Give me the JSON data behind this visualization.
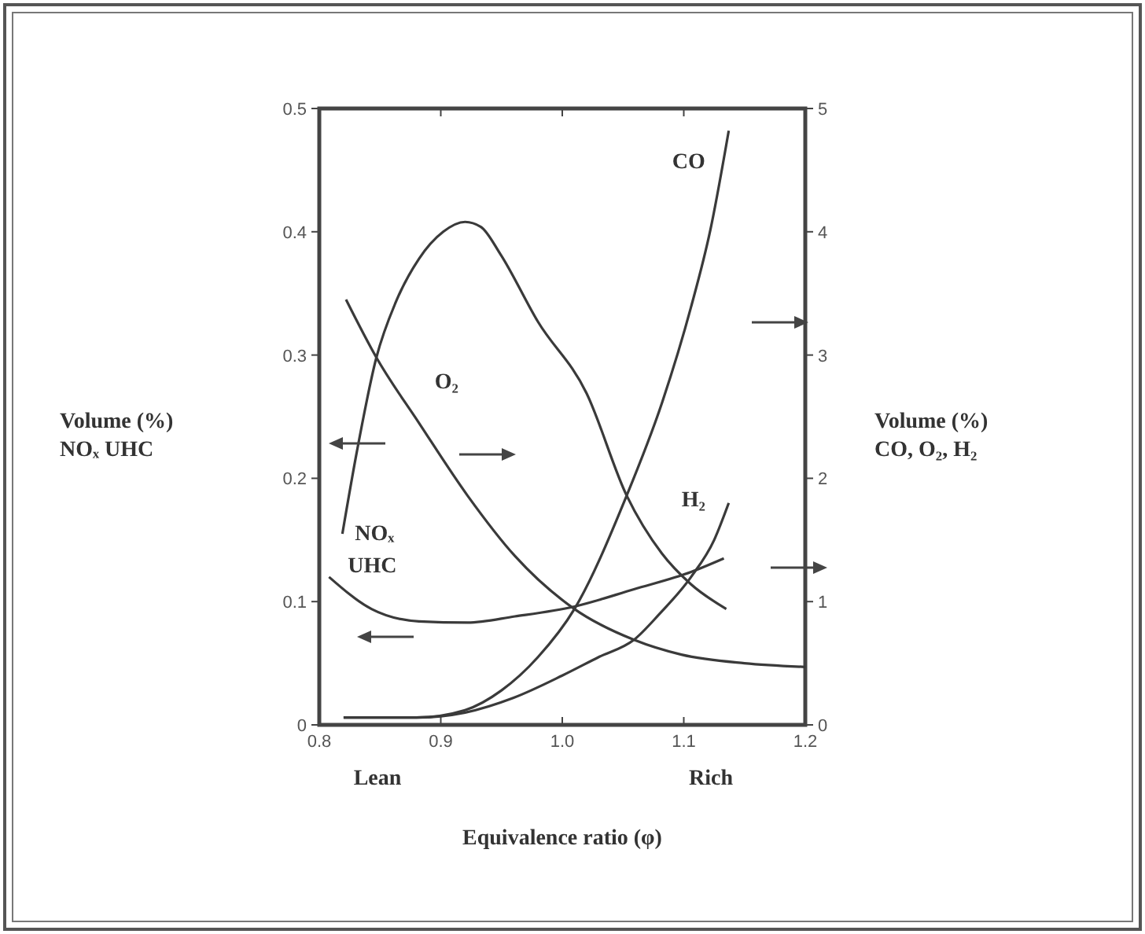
{
  "chart_data": {
    "type": "line",
    "xlabel": "Equivalence ratio (φ)",
    "ylabel": "Volume (%)\nNOₓ UHC",
    "y2label": "Volume (%)\nCO, O₂, H₂",
    "xlim": [
      0.8,
      1.2
    ],
    "xticks": [
      0.8,
      {
        "value": 0.9,
        "label": "0.9"
      },
      {
        "value": 1.0,
        "label": "1.0"
      },
      1.1,
      1.2
    ],
    "ylim": [
      0,
      0.5
    ],
    "yticks": [
      0,
      0.1,
      0.2,
      0.3,
      0.4,
      0.5
    ],
    "y2lim": [
      0,
      5
    ],
    "y2ticks": [
      0,
      1,
      2,
      3,
      4,
      5
    ],
    "grid": false,
    "line_style": "solid",
    "marker": "none",
    "annotations": [
      "Lean",
      "Rich"
    ],
    "series": [
      {
        "name": "NOₓ",
        "color": "#3a3a3a",
        "x": [
          0.819,
          0.831,
          0.847,
          0.863,
          0.882,
          0.902,
          0.92,
          0.933,
          0.949,
          0.98,
          1.02,
          1.053,
          1.082,
          1.106,
          1.135
        ],
        "values": [
          0.155,
          0.222,
          0.298,
          0.343,
          0.378,
          0.4,
          0.408,
          0.404,
          0.382,
          0.327,
          0.269,
          0.186,
          0.139,
          0.114,
          0.094
        ]
      },
      {
        "name": "UHC",
        "color": "#3a3a3a",
        "x": [
          0.808,
          0.843,
          0.882,
          0.922,
          0.961,
          1.01,
          1.059,
          1.106,
          1.133
        ],
        "values": [
          0.12,
          0.094,
          0.084,
          0.083,
          0.088,
          0.096,
          0.11,
          0.124,
          0.135
        ]
      },
      {
        "name": "O₂",
        "color": "#3a3a3a",
        "axis": "y2",
        "x": [
          0.822,
          0.847,
          0.882,
          0.922,
          0.961,
          1.01,
          1.059,
          1.098,
          1.15,
          1.2
        ],
        "values": [
          3.45,
          2.98,
          2.45,
          1.86,
          1.37,
          0.94,
          0.69,
          0.57,
          0.5,
          0.47
        ]
      },
      {
        "name": "CO",
        "color": "#3a3a3a",
        "axis": "y2",
        "x": [
          0.82,
          0.88,
          0.92,
          0.95,
          0.98,
          1.01,
          1.053,
          1.082,
          1.106,
          1.122,
          1.137
        ],
        "values": [
          0.06,
          0.06,
          0.12,
          0.28,
          0.55,
          0.94,
          1.86,
          2.61,
          3.39,
          4.02,
          4.82
        ]
      },
      {
        "name": "H₂",
        "color": "#3a3a3a",
        "axis": "y2",
        "x": [
          0.82,
          0.88,
          0.92,
          0.96,
          1.0,
          1.03,
          1.059,
          1.08,
          1.106,
          1.125,
          1.137
        ],
        "values": [
          0.06,
          0.06,
          0.1,
          0.22,
          0.4,
          0.55,
          0.69,
          0.9,
          1.2,
          1.5,
          1.8
        ]
      }
    ]
  }
}
